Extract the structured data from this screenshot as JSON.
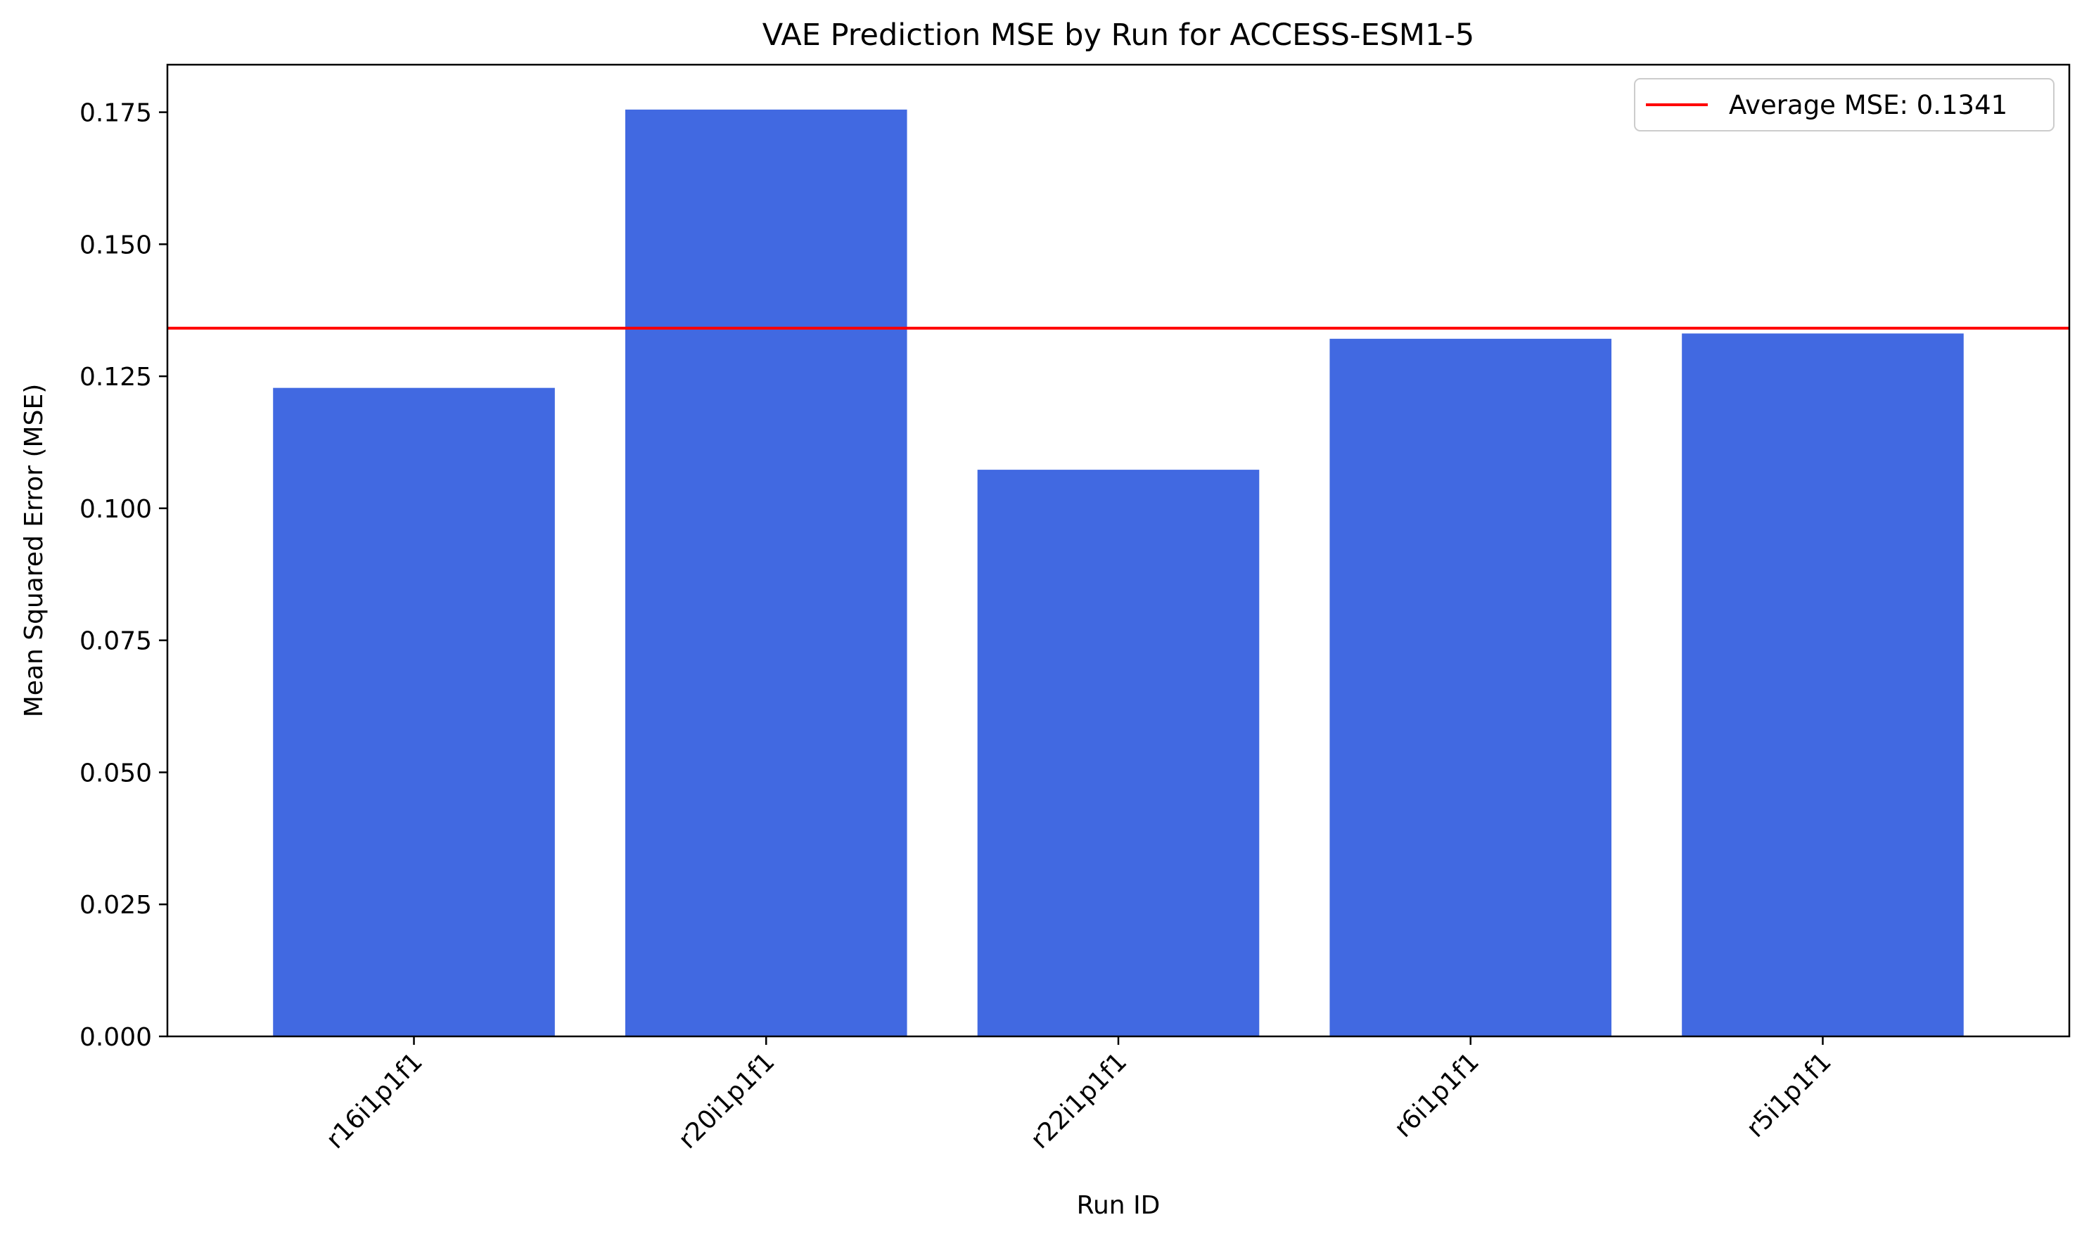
{
  "chart_data": {
    "type": "bar",
    "title": "VAE Prediction MSE by Run for ACCESS-ESM1-5",
    "xlabel": "Run ID",
    "ylabel": "Mean Squared Error (MSE)",
    "categories": [
      "r16i1p1f1",
      "r20i1p1f1",
      "r22i1p1f1",
      "r6i1p1f1",
      "r5i1p1f1"
    ],
    "values": [
      0.1228,
      0.1755,
      0.1073,
      0.1321,
      0.1331
    ],
    "ylim": [
      0,
      0.184
    ],
    "yticks": [
      "0.000",
      "0.025",
      "0.050",
      "0.075",
      "0.100",
      "0.125",
      "0.150",
      "0.175"
    ],
    "average": 0.1341,
    "legend": {
      "label": "Average MSE: 0.1341",
      "position": "top-right"
    },
    "grid": false,
    "colors": {
      "bar": "#4169e1",
      "average_line": "#ff0000",
      "axis": "#000000"
    }
  }
}
